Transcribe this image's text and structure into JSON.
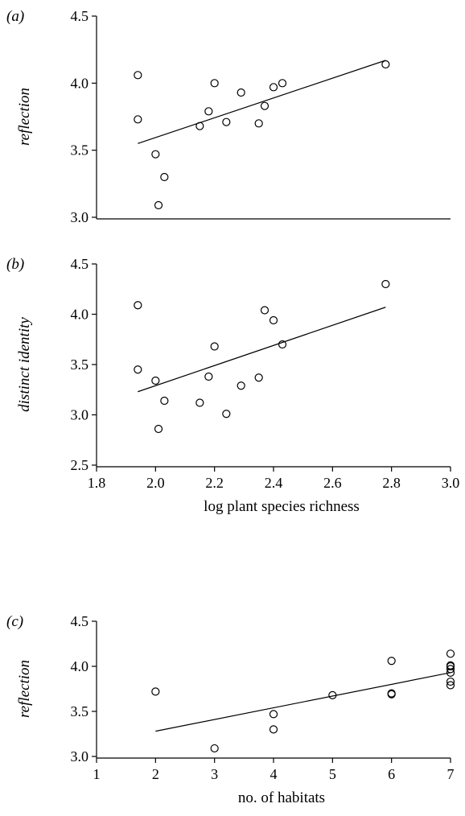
{
  "chart_data": [
    {
      "type": "scatter",
      "panel_label": "(a)",
      "ylabel": "reflection",
      "xlabel": "",
      "xlim": [
        1.8,
        3.0
      ],
      "ylim": [
        3.0,
        4.5
      ],
      "yticks": [
        "3.0",
        "3.5",
        "4.0",
        "4.5"
      ],
      "xticks": [],
      "points": [
        {
          "x": 1.94,
          "y": 4.06
        },
        {
          "x": 1.94,
          "y": 3.73
        },
        {
          "x": 2.0,
          "y": 3.47
        },
        {
          "x": 2.01,
          "y": 3.09
        },
        {
          "x": 2.03,
          "y": 3.3
        },
        {
          "x": 2.15,
          "y": 3.68
        },
        {
          "x": 2.18,
          "y": 3.79
        },
        {
          "x": 2.2,
          "y": 4.0
        },
        {
          "x": 2.24,
          "y": 3.71
        },
        {
          "x": 2.29,
          "y": 3.93
        },
        {
          "x": 2.35,
          "y": 3.7
        },
        {
          "x": 2.37,
          "y": 3.83
        },
        {
          "x": 2.4,
          "y": 3.97
        },
        {
          "x": 2.43,
          "y": 4.0
        },
        {
          "x": 2.78,
          "y": 4.14
        }
      ],
      "fit_line": {
        "x": [
          1.94,
          2.78
        ],
        "y": [
          3.55,
          4.17
        ]
      }
    },
    {
      "type": "scatter",
      "panel_label": "(b)",
      "ylabel": "distinct identity",
      "xlabel": "log plant species richness",
      "xlim": [
        1.8,
        3.0
      ],
      "ylim": [
        2.5,
        4.5
      ],
      "yticks": [
        "2.5",
        "3.0",
        "3.5",
        "4.0",
        "4.5"
      ],
      "xticks": [
        "1.8",
        "2.0",
        "2.2",
        "2.4",
        "2.6",
        "2.8",
        "3.0"
      ],
      "points": [
        {
          "x": 1.94,
          "y": 4.09
        },
        {
          "x": 1.94,
          "y": 3.45
        },
        {
          "x": 2.0,
          "y": 3.34
        },
        {
          "x": 2.01,
          "y": 2.86
        },
        {
          "x": 2.03,
          "y": 3.14
        },
        {
          "x": 2.15,
          "y": 3.12
        },
        {
          "x": 2.18,
          "y": 3.38
        },
        {
          "x": 2.2,
          "y": 3.68
        },
        {
          "x": 2.24,
          "y": 3.01
        },
        {
          "x": 2.29,
          "y": 3.29
        },
        {
          "x": 2.35,
          "y": 3.37
        },
        {
          "x": 2.37,
          "y": 4.04
        },
        {
          "x": 2.4,
          "y": 3.94
        },
        {
          "x": 2.43,
          "y": 3.7
        },
        {
          "x": 2.78,
          "y": 4.3
        }
      ],
      "fit_line": {
        "x": [
          1.94,
          2.78
        ],
        "y": [
          3.23,
          4.07
        ]
      }
    },
    {
      "type": "scatter",
      "panel_label": "(c)",
      "ylabel": "reflection",
      "xlabel": "no. of habitats",
      "xlim": [
        1,
        7
      ],
      "ylim": [
        3.0,
        4.5
      ],
      "yticks": [
        "3.0",
        "3.5",
        "4.0",
        "4.5"
      ],
      "xticks": [
        "1",
        "2",
        "3",
        "4",
        "5",
        "6",
        "7"
      ],
      "points": [
        {
          "x": 2,
          "y": 3.72
        },
        {
          "x": 3,
          "y": 3.09
        },
        {
          "x": 4,
          "y": 3.47
        },
        {
          "x": 4,
          "y": 3.3
        },
        {
          "x": 5,
          "y": 3.68
        },
        {
          "x": 6,
          "y": 4.06
        },
        {
          "x": 6,
          "y": 3.7
        },
        {
          "x": 6,
          "y": 3.69
        },
        {
          "x": 7,
          "y": 4.14
        },
        {
          "x": 7,
          "y": 4.01
        },
        {
          "x": 7,
          "y": 4.0
        },
        {
          "x": 7,
          "y": 3.97
        },
        {
          "x": 7,
          "y": 3.93
        },
        {
          "x": 7,
          "y": 3.83
        },
        {
          "x": 7,
          "y": 3.79
        }
      ],
      "fit_line": {
        "x": [
          2,
          7
        ],
        "y": [
          3.28,
          3.93
        ]
      }
    }
  ]
}
